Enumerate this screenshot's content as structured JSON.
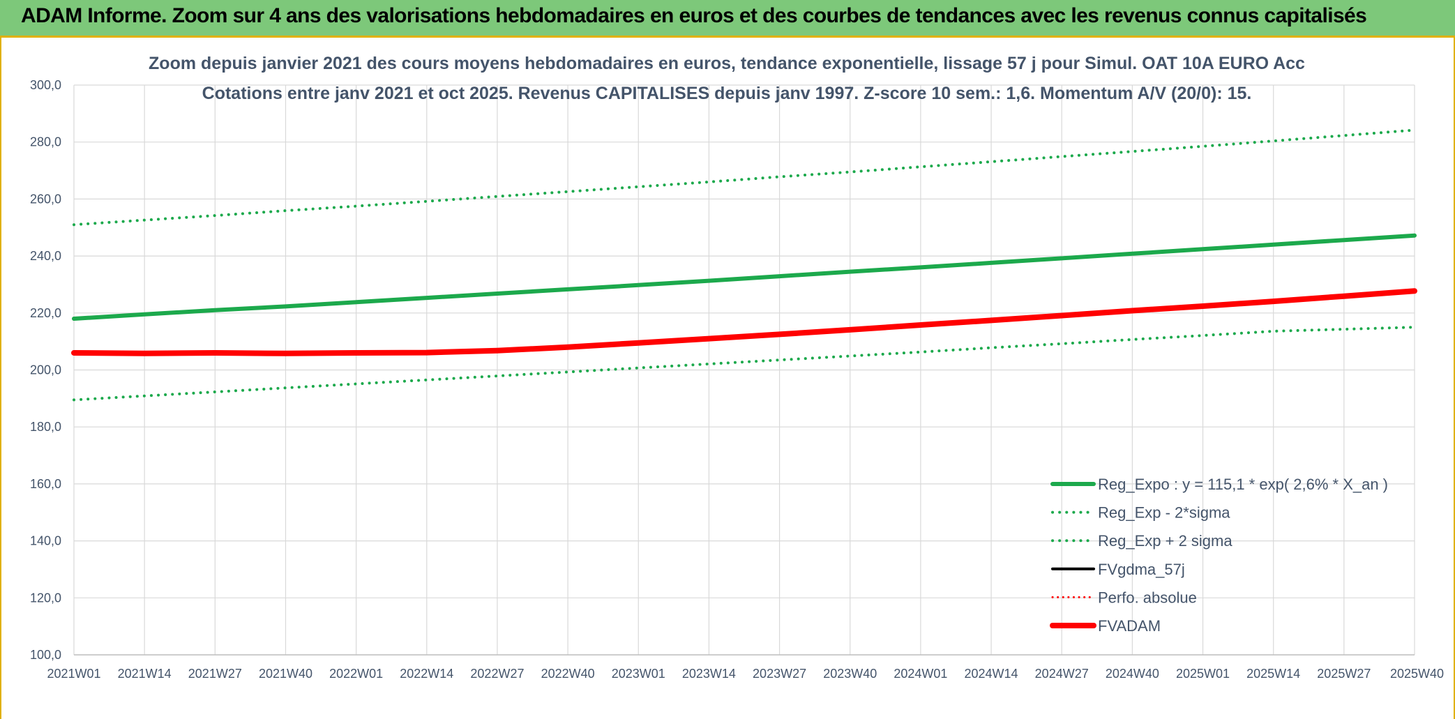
{
  "banner": {
    "title": "ADAM Informe. Zoom sur 4 ans des valorisations hebdomadaires en euros et des courbes de tendances avec les revenus connus capitalisés"
  },
  "colors": {
    "banner_bg": "#7dc87a",
    "accent_border": "#e0b000",
    "green": "#1ca94c",
    "red": "#ff0000",
    "black": "#000000",
    "text": "#44546a",
    "grid": "#d9d9d9"
  },
  "chart_data": {
    "type": "line",
    "title_line1": "Zoom depuis janvier 2021 des cours moyens hebdomadaires en euros, tendance exponentielle, lissage 57 j pour Simul. OAT 10A EURO Acc",
    "title_line2": "Cotations entre janv 2021 et oct 2025. Revenus CAPITALISES depuis janv 1997. Z-score 10 sem.: 1,6. Momentum A/V (20/0): 15.",
    "ylim": [
      100,
      300
    ],
    "yticks": [
      "100,0",
      "120,0",
      "140,0",
      "160,0",
      "180,0",
      "200,0",
      "220,0",
      "240,0",
      "260,0",
      "280,0",
      "300,0"
    ],
    "ytick_values": [
      100,
      120,
      140,
      160,
      180,
      200,
      220,
      240,
      260,
      280,
      300
    ],
    "xticks": [
      "2021W01",
      "2021W14",
      "2021W27",
      "2021W40",
      "2022W01",
      "2022W14",
      "2022W27",
      "2022W40",
      "2023W01",
      "2023W14",
      "2023W27",
      "2023W40",
      "2024W01",
      "2024W14",
      "2024W27",
      "2024W40",
      "2025W01",
      "2025W14",
      "2025W27",
      "2025W40"
    ],
    "grid": true,
    "legend_position": "bottom-right",
    "series": [
      {
        "name": "Reg_Expo : y = 115,1 * exp( 2,6% *  X_an )",
        "style": "solid",
        "color": "#1ca94c",
        "width": 6,
        "values": [
          218.0,
          219.5,
          221.0,
          222.3,
          223.8,
          225.3,
          226.8,
          228.3,
          229.8,
          231.3,
          232.9,
          234.5,
          236.0,
          237.6,
          239.2,
          240.8,
          242.4,
          244.0,
          245.6,
          247.2
        ]
      },
      {
        "name": "Reg_Exp - 2*sigma",
        "style": "dotted",
        "color": "#1ca94c",
        "width": 4,
        "values": [
          189.5,
          190.9,
          192.3,
          193.7,
          195.1,
          196.5,
          197.9,
          199.3,
          200.7,
          202.1,
          203.5,
          204.9,
          206.3,
          207.8,
          209.2,
          210.7,
          212.1,
          213.6,
          214.3,
          215.0
        ]
      },
      {
        "name": "Reg_Exp + 2 sigma",
        "style": "dotted",
        "color": "#1ca94c",
        "width": 4,
        "values": [
          251.0,
          252.6,
          254.2,
          255.9,
          257.5,
          259.2,
          260.9,
          262.6,
          264.3,
          266.0,
          267.8,
          269.5,
          271.3,
          273.1,
          274.9,
          276.7,
          278.5,
          280.4,
          282.3,
          284.2
        ]
      },
      {
        "name": "FVgdma_57j",
        "style": "solid",
        "color": "#000000",
        "width": 4,
        "values": []
      },
      {
        "name": "Perfo. absolue",
        "style": "dotted",
        "color": "#ff0000",
        "width": 3,
        "values": []
      },
      {
        "name": "FVADAM",
        "style": "solid",
        "color": "#ff0000",
        "width": 8,
        "values": [
          206.0,
          205.8,
          206.0,
          205.8,
          206.0,
          206.1,
          206.8,
          208.0,
          209.5,
          211.0,
          212.5,
          214.1,
          215.8,
          217.4,
          219.1,
          220.8,
          222.4,
          224.1,
          225.9,
          227.7
        ]
      }
    ]
  }
}
